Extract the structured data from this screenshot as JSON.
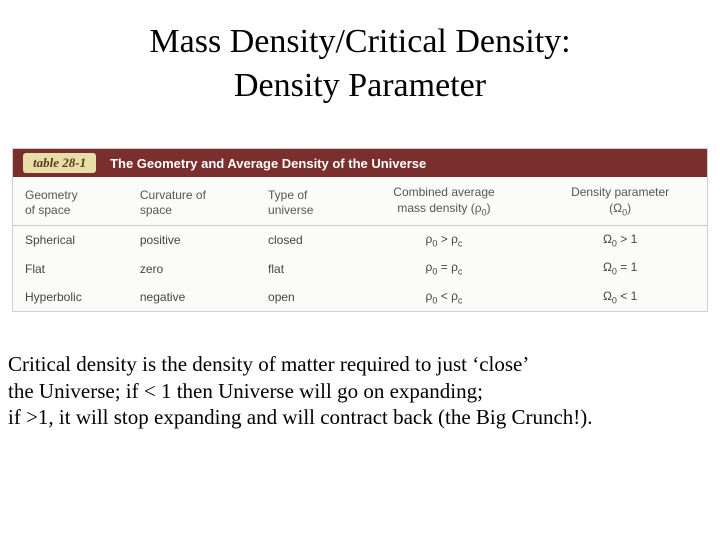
{
  "title": {
    "line1": "Mass Density/Critical Density:",
    "line2": "Density Parameter"
  },
  "table": {
    "tag": "table 28-1",
    "title": "The Geometry and Average Density of the Universe",
    "header_bg": "#7a2e2e",
    "tag_bg": "#e8dfa8",
    "columns": {
      "c0": "Geometry\nof space",
      "c1": "Curvature of\nspace",
      "c2": "Type of\nuniverse",
      "c3": "Combined average\nmass density (ρ₀)",
      "c4": "Density parameter\n(Ω₀)"
    },
    "rows": [
      {
        "geom": "Spherical",
        "curv": "positive",
        "type": "closed",
        "dens": "ρ₀ > ρc",
        "param": "Ω₀ > 1"
      },
      {
        "geom": "Flat",
        "curv": "zero",
        "type": "flat",
        "dens": "ρ₀ = ρc",
        "param": "Ω₀ = 1"
      },
      {
        "geom": "Hyperbolic",
        "curv": "negative",
        "type": "open",
        "dens": "ρ₀ < ρc",
        "param": "Ω₀ < 1"
      }
    ]
  },
  "body": {
    "l1": "Critical density is the density of matter required to just ‘close’",
    "l2": "the Universe; if < 1 then Universe will go on expanding;",
    "l3": "if >1, it will stop expanding and will contract back (the Big Crunch!)."
  },
  "style": {
    "title_fontsize": 34,
    "body_fontsize": 21,
    "table_fontsize": 12,
    "bg": "#ffffff",
    "text": "#000000"
  }
}
